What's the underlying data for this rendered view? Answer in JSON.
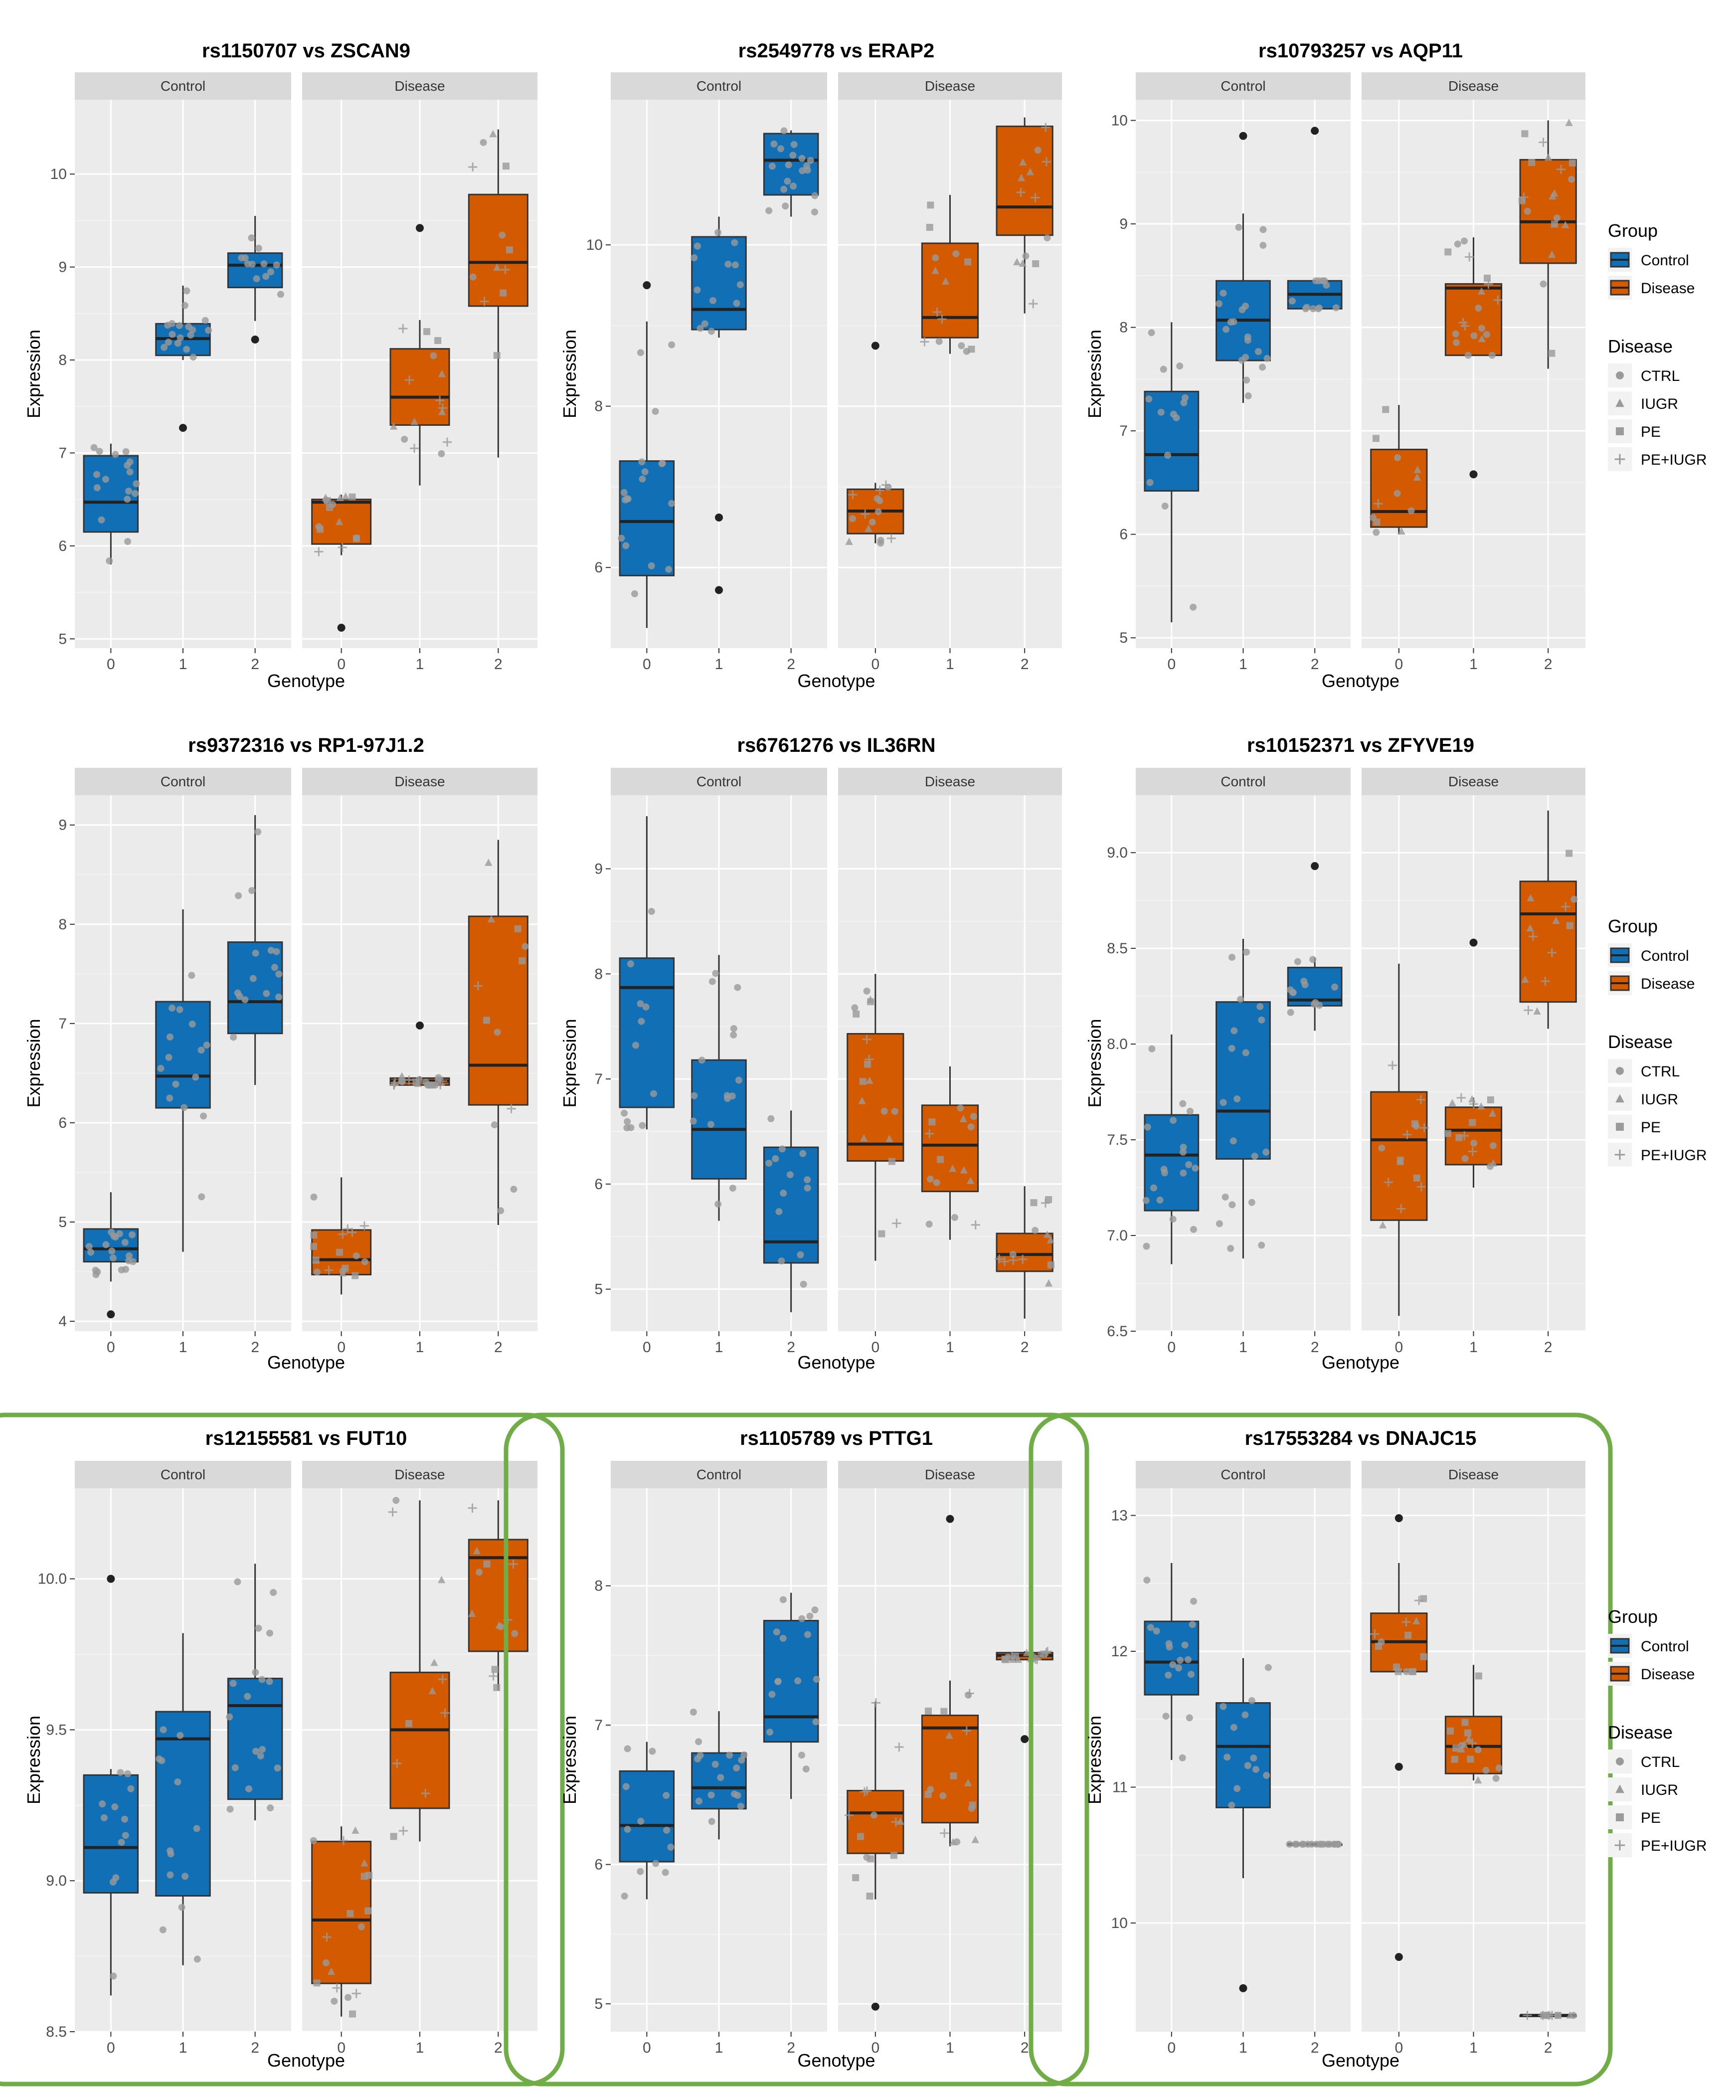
{
  "labels": {
    "expression": "Expression",
    "genotype": "Genotype",
    "control": "Control",
    "disease": "Disease",
    "group": "Group",
    "disease_legend": "Disease"
  },
  "legend": {
    "group_title": "Group",
    "group_items": [
      "Control",
      "Disease"
    ],
    "disease_title": "Disease",
    "disease_items": [
      {
        "label": "CTRL",
        "shape": "circle"
      },
      {
        "label": "IUGR",
        "shape": "triangle"
      },
      {
        "label": "PE",
        "shape": "square"
      },
      {
        "label": "PE+IUGR",
        "shape": "plus"
      }
    ]
  },
  "colors": {
    "control": "#1170b5",
    "disease": "#d45a00",
    "panel_bg": "#ebebeb",
    "strip_bg": "#d9d9d9",
    "highlight": "#70ad47"
  },
  "chart_data": [
    {
      "type": "box",
      "title": "rs1150707 vs ZSCAN9",
      "xlabel": "Genotype",
      "ylabel": "Expression",
      "facets": [
        "Control",
        "Disease"
      ],
      "categories": [
        "0",
        "1",
        "2"
      ],
      "ylim": [
        4.9,
        10.8
      ],
      "yticks": [
        5,
        6,
        7,
        8,
        9,
        10
      ],
      "highlight": false,
      "boxes": {
        "Control": [
          {
            "q1": 6.15,
            "med": 6.47,
            "q3": 6.97,
            "lo": 5.8,
            "hi": 7.1,
            "out": []
          },
          {
            "q1": 8.05,
            "med": 8.23,
            "q3": 8.39,
            "lo": 8.0,
            "hi": 8.8,
            "out": [
              7.27
            ]
          },
          {
            "q1": 8.78,
            "med": 9.02,
            "q3": 9.15,
            "lo": 8.42,
            "hi": 9.55,
            "out": [
              8.22
            ]
          }
        ],
        "Disease": [
          {
            "q1": 6.02,
            "med": 6.47,
            "q3": 6.5,
            "lo": 5.9,
            "hi": 6.55,
            "out": [
              5.12
            ]
          },
          {
            "q1": 7.3,
            "med": 7.6,
            "q3": 8.12,
            "lo": 6.65,
            "hi": 8.43,
            "out": [
              9.42
            ]
          },
          {
            "q1": 8.58,
            "med": 9.05,
            "q3": 9.78,
            "lo": 6.95,
            "hi": 10.48,
            "out": []
          }
        ]
      }
    },
    {
      "type": "box",
      "title": "rs2549778 vs ERAP2",
      "xlabel": "Genotype",
      "ylabel": "Expression",
      "facets": [
        "Control",
        "Disease"
      ],
      "categories": [
        "0",
        "1",
        "2"
      ],
      "ylim": [
        5.0,
        11.8
      ],
      "yticks": [
        6,
        8,
        10
      ],
      "highlight": false,
      "boxes": {
        "Control": [
          {
            "q1": 5.9,
            "med": 6.57,
            "q3": 7.32,
            "lo": 5.25,
            "hi": 9.05,
            "out": [
              9.5
            ]
          },
          {
            "q1": 8.95,
            "med": 9.2,
            "q3": 10.1,
            "lo": 8.85,
            "hi": 10.35,
            "out": [
              6.62,
              5.72
            ]
          },
          {
            "q1": 10.62,
            "med": 11.05,
            "q3": 11.38,
            "lo": 10.35,
            "hi": 11.42,
            "out": []
          }
        ],
        "Disease": [
          {
            "q1": 6.42,
            "med": 6.7,
            "q3": 6.97,
            "lo": 6.3,
            "hi": 7.05,
            "out": [
              8.75
            ]
          },
          {
            "q1": 8.85,
            "med": 9.1,
            "q3": 10.02,
            "lo": 8.65,
            "hi": 10.62,
            "out": []
          },
          {
            "q1": 10.12,
            "med": 10.47,
            "q3": 11.47,
            "lo": 9.15,
            "hi": 11.58,
            "out": []
          }
        ]
      }
    },
    {
      "type": "box",
      "title": "rs10793257 vs AQP11",
      "xlabel": "Genotype",
      "ylabel": "Expression",
      "facets": [
        "Control",
        "Disease"
      ],
      "categories": [
        "0",
        "1",
        "2"
      ],
      "ylim": [
        4.9,
        10.2
      ],
      "yticks": [
        5,
        6,
        7,
        8,
        9,
        10
      ],
      "highlight": false,
      "boxes": {
        "Control": [
          {
            "q1": 6.42,
            "med": 6.77,
            "q3": 7.38,
            "lo": 5.15,
            "hi": 8.05,
            "out": []
          },
          {
            "q1": 7.68,
            "med": 8.07,
            "q3": 8.45,
            "lo": 7.27,
            "hi": 9.1,
            "out": [
              9.85
            ]
          },
          {
            "q1": 8.18,
            "med": 8.32,
            "q3": 8.45,
            "lo": 8.18,
            "hi": 8.45,
            "out": [
              9.9
            ]
          }
        ],
        "Disease": [
          {
            "q1": 6.07,
            "med": 6.22,
            "q3": 6.82,
            "lo": 6.0,
            "hi": 7.25,
            "out": []
          },
          {
            "q1": 7.73,
            "med": 8.38,
            "q3": 8.42,
            "lo": 7.73,
            "hi": 8.87,
            "out": [
              6.58
            ]
          },
          {
            "q1": 8.62,
            "med": 9.02,
            "q3": 9.62,
            "lo": 7.6,
            "hi": 10.0,
            "out": []
          }
        ]
      }
    },
    {
      "type": "box",
      "title": "rs9372316 vs RP1-97J1.2",
      "xlabel": "Genotype",
      "ylabel": "Expression",
      "facets": [
        "Control",
        "Disease"
      ],
      "categories": [
        "0",
        "1",
        "2"
      ],
      "ylim": [
        3.9,
        9.3
      ],
      "yticks": [
        4,
        5,
        6,
        7,
        8,
        9
      ],
      "highlight": false,
      "boxes": {
        "Control": [
          {
            "q1": 4.6,
            "med": 4.73,
            "q3": 4.93,
            "lo": 4.4,
            "hi": 5.3,
            "out": [
              4.07
            ]
          },
          {
            "q1": 6.15,
            "med": 6.47,
            "q3": 7.22,
            "lo": 4.7,
            "hi": 8.15,
            "out": []
          },
          {
            "q1": 6.9,
            "med": 7.22,
            "q3": 7.82,
            "lo": 6.38,
            "hi": 9.1,
            "out": []
          }
        ],
        "Disease": [
          {
            "q1": 4.47,
            "med": 4.62,
            "q3": 4.92,
            "lo": 4.27,
            "hi": 5.45,
            "out": []
          },
          {
            "q1": 6.38,
            "med": 6.42,
            "q3": 6.45,
            "lo": 6.38,
            "hi": 6.47,
            "out": [
              6.98
            ]
          },
          {
            "q1": 6.18,
            "med": 6.58,
            "q3": 8.08,
            "lo": 4.97,
            "hi": 8.85,
            "out": []
          }
        ]
      }
    },
    {
      "type": "box",
      "title": "rs6761276 vs IL36RN",
      "xlabel": "Genotype",
      "ylabel": "Expression",
      "facets": [
        "Control",
        "Disease"
      ],
      "categories": [
        "0",
        "1",
        "2"
      ],
      "ylim": [
        4.6,
        9.7
      ],
      "yticks": [
        5,
        6,
        7,
        8,
        9
      ],
      "highlight": false,
      "boxes": {
        "Control": [
          {
            "q1": 6.73,
            "med": 7.87,
            "q3": 8.15,
            "lo": 6.52,
            "hi": 9.5,
            "out": []
          },
          {
            "q1": 6.05,
            "med": 6.52,
            "q3": 7.18,
            "lo": 5.65,
            "hi": 8.18,
            "out": []
          },
          {
            "q1": 5.25,
            "med": 5.45,
            "q3": 6.35,
            "lo": 4.78,
            "hi": 6.7,
            "out": []
          }
        ],
        "Disease": [
          {
            "q1": 6.22,
            "med": 6.38,
            "q3": 7.43,
            "lo": 5.27,
            "hi": 8.0,
            "out": []
          },
          {
            "q1": 5.93,
            "med": 6.37,
            "q3": 6.75,
            "lo": 5.47,
            "hi": 7.12,
            "out": []
          },
          {
            "q1": 5.17,
            "med": 5.33,
            "q3": 5.53,
            "lo": 4.72,
            "hi": 5.98,
            "out": []
          }
        ]
      }
    },
    {
      "type": "box",
      "title": "rs10152371 vs ZFYVE19",
      "xlabel": "Genotype",
      "ylabel": "Expression",
      "facets": [
        "Control",
        "Disease"
      ],
      "categories": [
        "0",
        "1",
        "2"
      ],
      "ylim": [
        6.5,
        9.3
      ],
      "yticks": [
        6.5,
        7.0,
        7.5,
        8.0,
        8.5,
        9.0
      ],
      "yfmt": 1,
      "highlight": false,
      "boxes": {
        "Control": [
          {
            "q1": 7.13,
            "med": 7.42,
            "q3": 7.63,
            "lo": 6.85,
            "hi": 8.05,
            "out": []
          },
          {
            "q1": 7.4,
            "med": 7.65,
            "q3": 8.22,
            "lo": 6.88,
            "hi": 8.55,
            "out": []
          },
          {
            "q1": 8.2,
            "med": 8.23,
            "q3": 8.4,
            "lo": 8.07,
            "hi": 8.45,
            "out": [
              8.93
            ]
          }
        ],
        "Disease": [
          {
            "q1": 7.08,
            "med": 7.5,
            "q3": 7.75,
            "lo": 6.58,
            "hi": 8.42,
            "out": []
          },
          {
            "q1": 7.37,
            "med": 7.55,
            "q3": 7.67,
            "lo": 7.25,
            "hi": 7.72,
            "out": [
              8.53
            ]
          },
          {
            "q1": 8.22,
            "med": 8.68,
            "q3": 8.85,
            "lo": 8.08,
            "hi": 9.22,
            "out": []
          }
        ]
      }
    },
    {
      "type": "box",
      "title": "rs12155581 vs FUT10",
      "xlabel": "Genotype",
      "ylabel": "Expression",
      "facets": [
        "Control",
        "Disease"
      ],
      "categories": [
        "0",
        "1",
        "2"
      ],
      "ylim": [
        8.5,
        10.3
      ],
      "yticks": [
        8.5,
        9.0,
        9.5,
        10.0
      ],
      "yfmt": 1,
      "highlight": true,
      "boxes": {
        "Control": [
          {
            "q1": 8.96,
            "med": 9.11,
            "q3": 9.35,
            "lo": 8.62,
            "hi": 9.37,
            "out": [
              10.0
            ]
          },
          {
            "q1": 8.95,
            "med": 9.47,
            "q3": 9.56,
            "lo": 8.72,
            "hi": 9.82,
            "out": []
          },
          {
            "q1": 9.27,
            "med": 9.58,
            "q3": 9.67,
            "lo": 9.2,
            "hi": 10.05,
            "out": []
          }
        ],
        "Disease": [
          {
            "q1": 8.66,
            "med": 8.87,
            "q3": 9.13,
            "lo": 8.55,
            "hi": 9.18,
            "out": []
          },
          {
            "q1": 9.24,
            "med": 9.5,
            "q3": 9.69,
            "lo": 9.13,
            "hi": 10.26,
            "out": []
          },
          {
            "q1": 9.76,
            "med": 10.07,
            "q3": 10.13,
            "lo": 9.63,
            "hi": 10.26,
            "out": []
          }
        ]
      }
    },
    {
      "type": "box",
      "title": "rs1105789 vs PTTG1",
      "xlabel": "Genotype",
      "ylabel": "Expression",
      "facets": [
        "Control",
        "Disease"
      ],
      "categories": [
        "0",
        "1",
        "2"
      ],
      "ylim": [
        4.8,
        8.7
      ],
      "yticks": [
        5,
        6,
        7,
        8
      ],
      "highlight": true,
      "boxes": {
        "Control": [
          {
            "q1": 6.02,
            "med": 6.28,
            "q3": 6.67,
            "lo": 5.75,
            "hi": 6.88,
            "out": []
          },
          {
            "q1": 6.4,
            "med": 6.55,
            "q3": 6.8,
            "lo": 6.18,
            "hi": 7.1,
            "out": []
          },
          {
            "q1": 6.88,
            "med": 7.06,
            "q3": 7.75,
            "lo": 6.47,
            "hi": 7.95,
            "out": []
          }
        ],
        "Disease": [
          {
            "q1": 6.08,
            "med": 6.37,
            "q3": 6.53,
            "lo": 5.75,
            "hi": 7.17,
            "out": [
              4.98
            ]
          },
          {
            "q1": 6.3,
            "med": 6.98,
            "q3": 7.07,
            "lo": 6.13,
            "hi": 7.32,
            "out": [
              8.48
            ]
          },
          {
            "q1": 7.47,
            "med": 7.5,
            "q3": 7.52,
            "lo": 7.47,
            "hi": 7.53,
            "out": [
              6.9
            ]
          }
        ]
      }
    },
    {
      "type": "box",
      "title": "rs17553284 vs DNAJC15",
      "xlabel": "Genotype",
      "ylabel": "Expression",
      "facets": [
        "Control",
        "Disease"
      ],
      "categories": [
        "0",
        "1",
        "2"
      ],
      "ylim": [
        9.2,
        13.2
      ],
      "yticks": [
        10,
        11,
        12,
        13
      ],
      "highlight": true,
      "boxes": {
        "Control": [
          {
            "q1": 11.68,
            "med": 11.92,
            "q3": 12.22,
            "lo": 11.2,
            "hi": 12.65,
            "out": []
          },
          {
            "q1": 10.85,
            "med": 11.3,
            "q3": 11.62,
            "lo": 10.33,
            "hi": 11.95,
            "out": [
              9.52
            ]
          },
          {
            "q1": 10.58,
            "med": 10.58,
            "q3": 10.58,
            "lo": 10.58,
            "hi": 10.58,
            "out": []
          }
        ],
        "Disease": [
          {
            "q1": 11.85,
            "med": 12.07,
            "q3": 12.28,
            "lo": 11.85,
            "hi": 12.65,
            "out": [
              12.98,
              11.15,
              9.75
            ]
          },
          {
            "q1": 11.1,
            "med": 11.3,
            "q3": 11.52,
            "lo": 11.05,
            "hi": 11.9,
            "out": []
          },
          {
            "q1": 9.32,
            "med": 9.32,
            "q3": 9.32,
            "lo": 9.32,
            "hi": 9.32,
            "out": []
          }
        ]
      }
    }
  ]
}
